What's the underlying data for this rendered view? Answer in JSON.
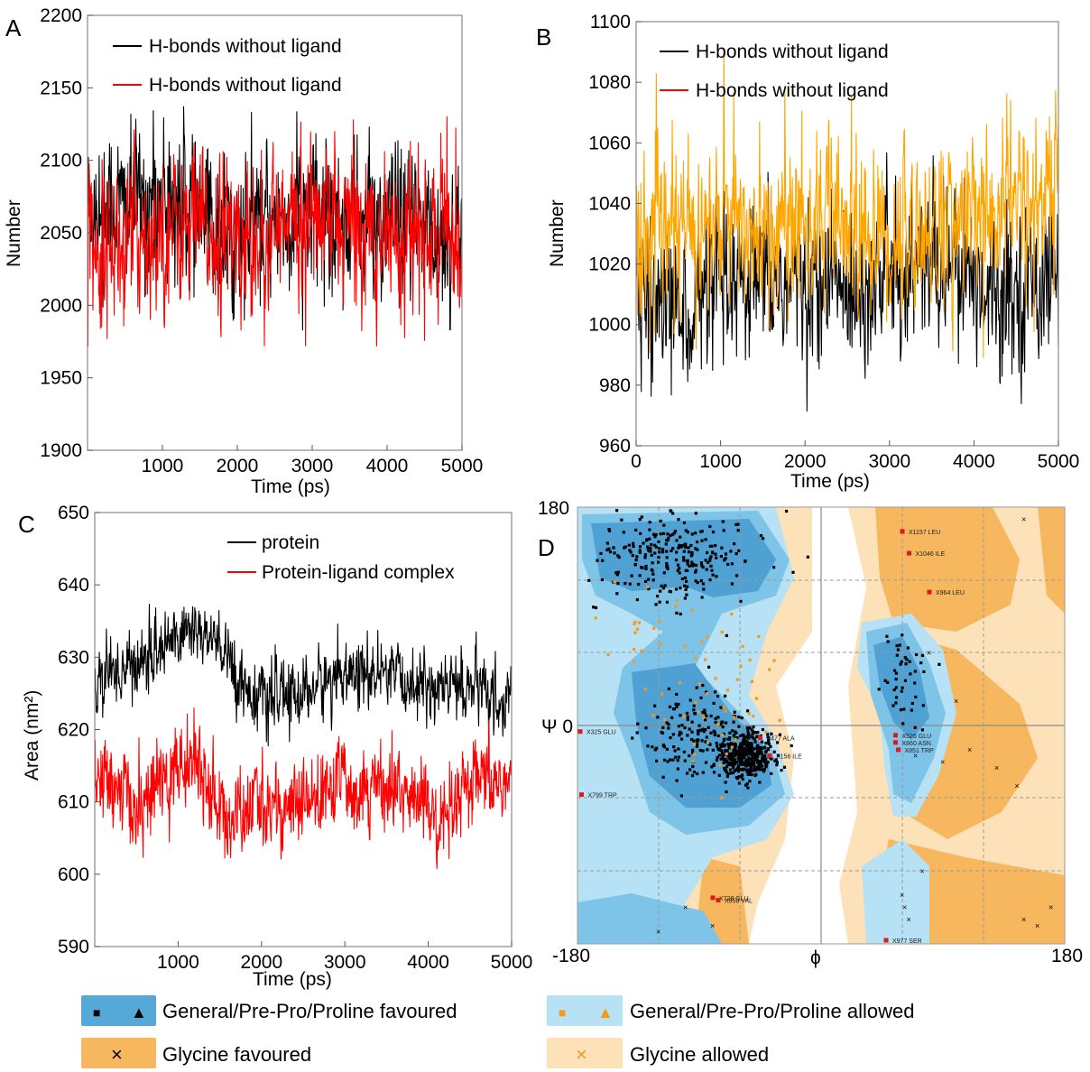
{
  "chart_data": [
    {
      "id": "A",
      "panel_label": "A",
      "type": "line",
      "title": "",
      "xlabel": "Time (ps)",
      "ylabel": "Number",
      "xlim": [
        0,
        5000
      ],
      "ylim": [
        1900,
        2200
      ],
      "xticks": [
        1000,
        2000,
        3000,
        4000,
        5000
      ],
      "xtick_labels": [
        "1000",
        "2000",
        "3000",
        "4000",
        "5000"
      ],
      "yticks": [
        1900,
        1950,
        2000,
        2050,
        2100,
        2150,
        2200
      ],
      "ytick_labels": [
        "1900",
        "1950",
        "2000",
        "2050",
        "2100",
        "2150",
        "2200"
      ],
      "legend_position": "top-left",
      "series": [
        {
          "name": "H-bonds without ligand",
          "color": "#000000",
          "mean": 2062,
          "spread": 24,
          "min": 1983,
          "max": 2138,
          "key_x": [
            0,
            500,
            1000,
            1500,
            2000,
            2500,
            3000,
            3500,
            4000,
            4500,
            5000
          ],
          "key_y": [
            2070,
            2068,
            2075,
            2060,
            2048,
            2058,
            2065,
            2060,
            2055,
            2050,
            2048
          ]
        },
        {
          "name": "H-bonds without ligand",
          "color": "#ff0000",
          "mean": 2050,
          "spread": 24,
          "min": 1972,
          "max": 2130,
          "key_x": [
            0,
            500,
            1000,
            1500,
            2000,
            2500,
            3000,
            3500,
            4000,
            4500,
            5000
          ],
          "key_y": [
            2048,
            2045,
            2055,
            2052,
            2046,
            2050,
            2058,
            2055,
            2052,
            2045,
            2048
          ]
        }
      ]
    },
    {
      "id": "B",
      "panel_label": "B",
      "type": "line",
      "title": "",
      "xlabel": "Time (ps)",
      "ylabel": "Number",
      "xlim": [
        0,
        5000
      ],
      "ylim": [
        960,
        1100
      ],
      "xticks": [
        0,
        1000,
        2000,
        3000,
        4000,
        5000
      ],
      "xtick_labels": [
        "0",
        "1000",
        "2000",
        "3000",
        "4000",
        "5000"
      ],
      "yticks": [
        960,
        980,
        1000,
        1020,
        1040,
        1060,
        1080,
        1100
      ],
      "ytick_labels": [
        "960",
        "980",
        "1000",
        "1020",
        "1040",
        "1060",
        "1080",
        "1100"
      ],
      "legend_position": "top-left",
      "series": [
        {
          "name": "H-bonds without ligand",
          "color": "#000000",
          "mean": 1012,
          "spread": 12,
          "min": 968,
          "max": 1058,
          "key_x": [
            0,
            500,
            1000,
            1500,
            2000,
            2500,
            3000,
            3500,
            4000,
            4500,
            5000
          ],
          "key_y": [
            1010,
            1005,
            1010,
            1012,
            1015,
            1012,
            1018,
            1020,
            1015,
            1012,
            1018
          ]
        },
        {
          "name": "H-bonds without ligand",
          "color": "#ffa500",
          "mean": 1030,
          "spread": 13,
          "min": 963,
          "max": 1095,
          "key_x": [
            0,
            500,
            1000,
            1500,
            2000,
            2500,
            3000,
            3500,
            4000,
            4500,
            5000
          ],
          "key_y": [
            1028,
            1030,
            1032,
            1030,
            1035,
            1030,
            1028,
            1032,
            1035,
            1040,
            1042
          ]
        }
      ]
    },
    {
      "id": "C",
      "panel_label": "C",
      "type": "line",
      "title": "",
      "xlabel": "Time (ps)",
      "ylabel": "Area (nm²)",
      "xlim": [
        0,
        5000
      ],
      "ylim": [
        590,
        650
      ],
      "xticks": [
        1000,
        2000,
        3000,
        4000,
        5000
      ],
      "xtick_labels": [
        "1000",
        "2000",
        "3000",
        "4000",
        "5000"
      ],
      "yticks": [
        590,
        600,
        610,
        620,
        630,
        640,
        650
      ],
      "ytick_labels": [
        "590",
        "600",
        "610",
        "620",
        "630",
        "640",
        "650"
      ],
      "legend_position": "top-right",
      "series": [
        {
          "name": "protein",
          "color": "#000000",
          "mean": 627,
          "spread": 2.2,
          "min": 617,
          "max": 639,
          "key_x": [
            0,
            500,
            1000,
            1200,
            1500,
            1800,
            2000,
            2500,
            3000,
            3500,
            4000,
            4500,
            5000
          ],
          "key_y": [
            627,
            629,
            633,
            634,
            631,
            626,
            624,
            625,
            628,
            627,
            626,
            626,
            623
          ]
        },
        {
          "name": "Protein-ligand complex",
          "color": "#ff0000",
          "mean": 612,
          "spread": 2.8,
          "min": 598,
          "max": 623,
          "key_x": [
            0,
            500,
            1000,
            1200,
            1600,
            2000,
            2500,
            3000,
            3500,
            4000,
            4100,
            4500,
            5000
          ],
          "key_y": [
            614,
            609,
            615,
            616,
            607,
            610,
            609,
            613,
            612,
            610,
            605,
            612,
            613
          ]
        }
      ]
    },
    {
      "id": "D",
      "panel_label": "D",
      "type": "scatter",
      "title": "",
      "xlabel": "ϕ",
      "ylabel": "Ψ",
      "xlim": [
        -180,
        180
      ],
      "ylim": [
        -180,
        180
      ],
      "xticks": [
        -180,
        180
      ],
      "xtick_labels": [
        "-180",
        "180"
      ],
      "yticks": [
        0,
        180
      ],
      "ytick_labels": [
        "Ψ 0",
        "180"
      ],
      "outliers": [
        {
          "label": "X1157 LEU",
          "phi": 60,
          "psi": 160
        },
        {
          "label": "X1046 ILE",
          "phi": 65,
          "psi": 142
        },
        {
          "label": "X964 LEU",
          "phi": 80,
          "psi": 110
        },
        {
          "label": "X477 ALA",
          "phi": -45,
          "psi": -10
        },
        {
          "label": "X156 ILE",
          "phi": -38,
          "psi": -25
        },
        {
          "label": "X325 GLU",
          "phi": -178,
          "psi": -5
        },
        {
          "label": "X799 TRP",
          "phi": -177,
          "psi": -57
        },
        {
          "label": "X526 GLU",
          "phi": 55,
          "psi": -8
        },
        {
          "label": "X860 ASN",
          "phi": 55,
          "psi": -14
        },
        {
          "label": "X851 TRP",
          "phi": 57,
          "psi": -20
        },
        {
          "label": "X728 GLU",
          "phi": -80,
          "psi": -142
        },
        {
          "label": "X858 VAL",
          "phi": -76,
          "psi": -144
        },
        {
          "label": "X977 SER",
          "phi": 48,
          "psi": -177
        }
      ]
    }
  ],
  "ramachandran_legend": [
    {
      "label": "General/Pre-Pro/Proline favoured",
      "swatch": "#56a8d8",
      "symbols": [
        "■",
        "▲"
      ],
      "symbol_color": "#000000"
    },
    {
      "label": "General/Pre-Pro/Proline allowed",
      "swatch": "#b7e1f4",
      "symbols": [
        "■",
        "▲"
      ],
      "symbol_color": "#f59a16"
    },
    {
      "label": "Glycine favoured",
      "swatch": "#f6b75e",
      "symbols": [
        "×"
      ],
      "symbol_color": "#000000"
    },
    {
      "label": "Glycine allowed",
      "swatch": "#fde1b8",
      "symbols": [
        "×"
      ],
      "symbol_color": "#f59a16"
    }
  ]
}
